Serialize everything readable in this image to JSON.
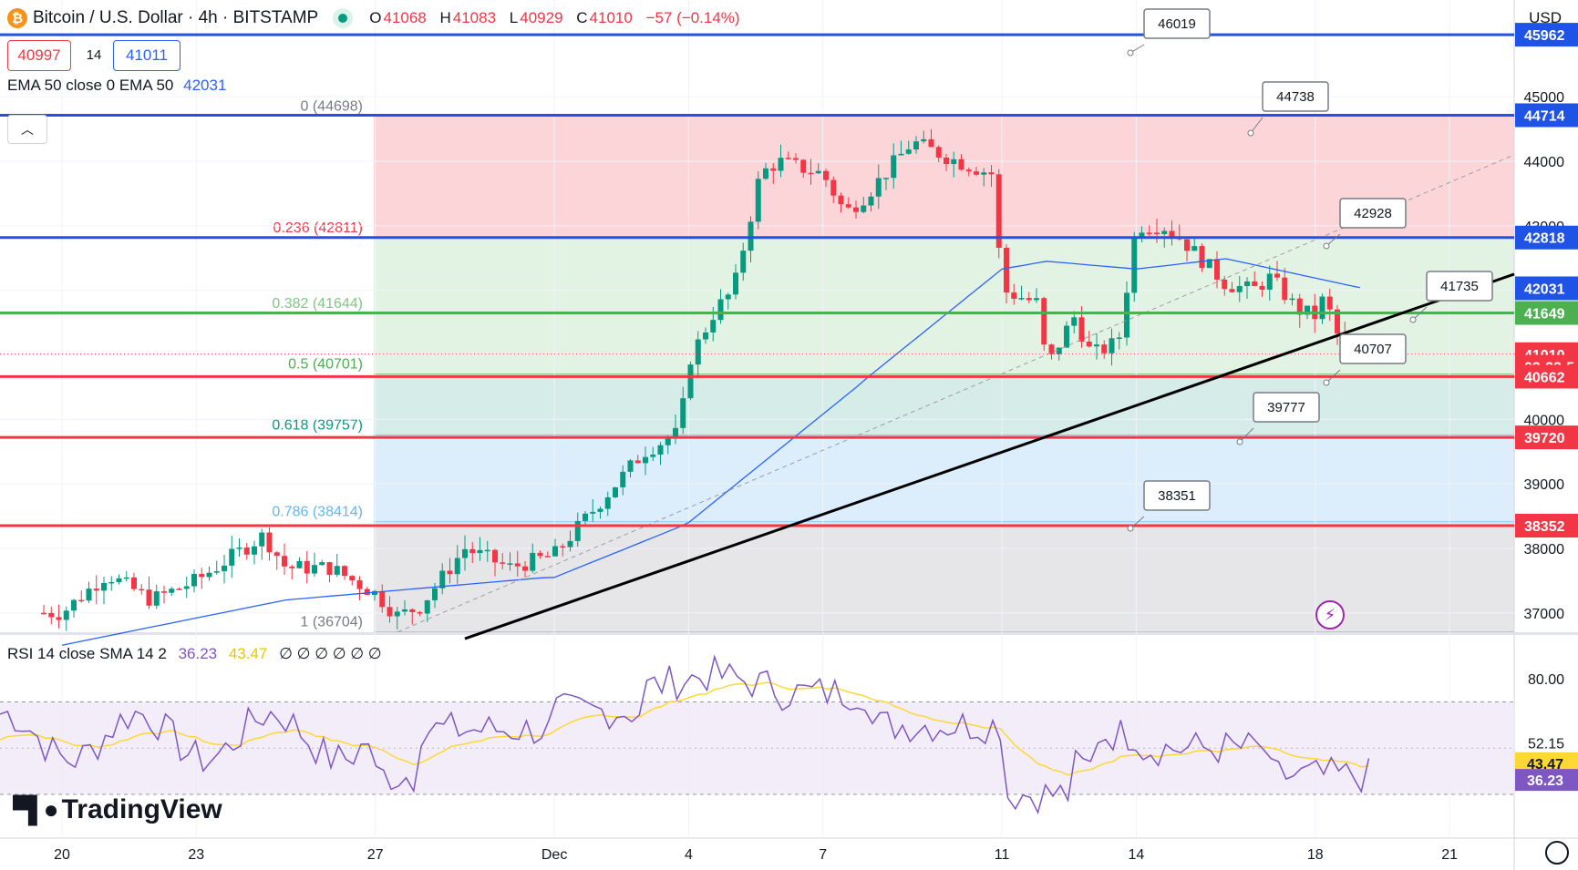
{
  "header": {
    "symbol_icon": "bitcoin-icon",
    "title": "Bitcoin / U.S. Dollar · 4h · BITSTAMP",
    "ohlc": [
      {
        "k": "O",
        "v": "41068"
      },
      {
        "k": "H",
        "v": "41083"
      },
      {
        "k": "L",
        "v": "40929"
      },
      {
        "k": "C",
        "v": "41010"
      }
    ],
    "change": "−57 (−0.14%)",
    "sell_price": "40997",
    "spread": "14",
    "buy_price": "41011",
    "ema_label": "EMA 50 close 0 EMA 50",
    "ema_value": "42031",
    "collapse_icon": "chevron-up-icon",
    "currency": "USD"
  },
  "rsi_legend": {
    "label": "RSI 14 close SMA 14 2",
    "rsi_value": "36.23",
    "sma_value": "43.47",
    "extras": "∅ ∅ ∅ ∅ ∅ ∅"
  },
  "branding": {
    "logo_text": "TradingView"
  },
  "colors": {
    "up": "#089981",
    "down": "#f23645",
    "ema": "#2962ff",
    "blue_line": "#1e53e5",
    "green_line": "#4caf50",
    "red_line": "#f23645",
    "rsi": "#7e57c2",
    "rsi_sma": "#fdd835",
    "fib_red": "#fcd5d9",
    "fib_green": "#e3f3e3",
    "fib_teal": "#d5ece9",
    "fib_blue": "#dceefb",
    "fib_gray": "#e6e6e8"
  },
  "chart_data": {
    "type": "candlestick",
    "timeframe": "4h",
    "y_range": [
      36700,
      46500
    ],
    "x_ticks": [
      "20",
      "23",
      "27",
      "Dec",
      "4",
      "7",
      "11",
      "14",
      "18",
      "21"
    ],
    "y_ticks": [
      37000,
      38000,
      39000,
      40000,
      41000,
      42000,
      43000,
      44000,
      45000
    ],
    "fib_levels": [
      {
        "ratio": "0",
        "price": "44698"
      },
      {
        "ratio": "0.236",
        "price": "42811"
      },
      {
        "ratio": "0.382",
        "price": "41644"
      },
      {
        "ratio": "0.5",
        "price": "40701"
      },
      {
        "ratio": "0.618",
        "price": "39757"
      },
      {
        "ratio": "0.786",
        "price": "38414"
      },
      {
        "ratio": "1",
        "price": "36704"
      }
    ],
    "horizontal_lines": [
      {
        "price": 45962,
        "color": "blue",
        "label": "45962"
      },
      {
        "price": 44714,
        "color": "blue",
        "label": "44714"
      },
      {
        "price": 42818,
        "color": "blue",
        "label": "42818"
      },
      {
        "price": 41649,
        "color": "green",
        "label": "41649"
      },
      {
        "price": 40662,
        "color": "red",
        "label": "40662"
      },
      {
        "price": 39720,
        "color": "red",
        "label": "39720"
      },
      {
        "price": 38352,
        "color": "red",
        "label": "38352"
      }
    ],
    "price_labels": [
      {
        "text": "45962",
        "price": 45962,
        "color": "blue"
      },
      {
        "text": "44714",
        "price": 44714,
        "color": "blue"
      },
      {
        "text": "42818",
        "price": 42818,
        "color": "blue"
      },
      {
        "text": "42031",
        "price": 42031,
        "color": "blue"
      },
      {
        "text": "41649",
        "price": 41649,
        "color": "green"
      },
      {
        "text": "41010",
        "price": 41010,
        "color": "red"
      },
      {
        "text": "03:22:5",
        "price": 40815,
        "color": "red"
      },
      {
        "text": "40662",
        "price": 40662,
        "color": "red"
      },
      {
        "text": "39720",
        "price": 39720,
        "color": "red"
      },
      {
        "text": "38352",
        "price": 38352,
        "color": "red"
      }
    ],
    "callouts": [
      "46019",
      "44738",
      "42928",
      "41735",
      "40707",
      "39777",
      "38351"
    ],
    "trendline": {
      "from": {
        "date": "Nov 28",
        "price": 36600
      },
      "to": {
        "date": "Dec 21",
        "price": 42200
      }
    },
    "ema50_value": 42031,
    "current_price": 41010,
    "rsi": {
      "value": 36.23,
      "sma": 43.47,
      "levels": [
        80,
        52.15,
        44.06
      ],
      "band": [
        30,
        70
      ],
      "axis_labels": [
        "80.00",
        "52.15",
        "44.06",
        "43.47",
        "36.23"
      ]
    }
  }
}
